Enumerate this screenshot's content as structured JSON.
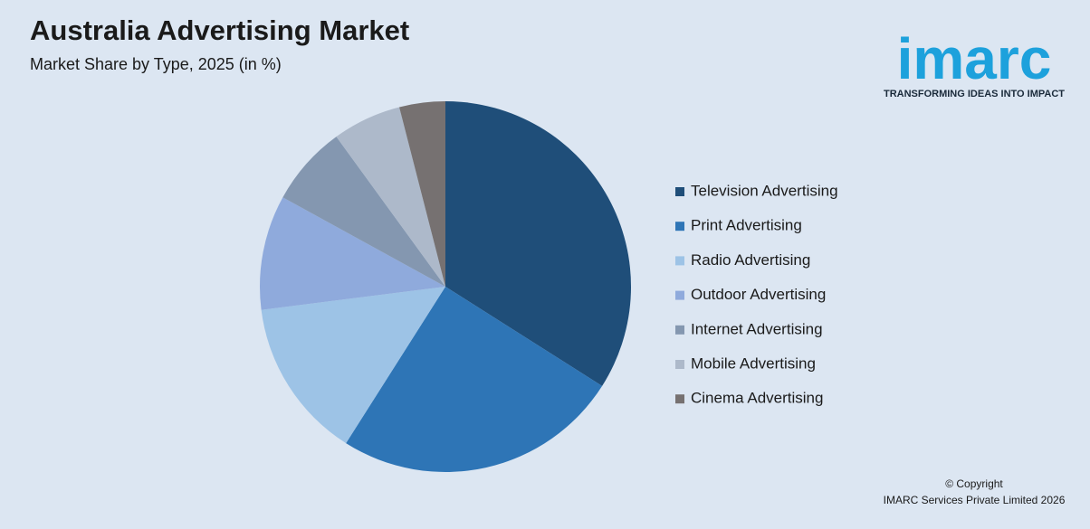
{
  "chart_data": {
    "type": "pie",
    "title": "Australia Advertising Market",
    "subtitle": "Market Share by Type, 2025 (in %)",
    "categories": [
      "Television Advertising",
      "Print Advertising",
      "Radio Advertising",
      "Outdoor Advertising",
      "Internet Advertising",
      "Mobile Advertising",
      "Cinema Advertising"
    ],
    "values": [
      34,
      25,
      14,
      10,
      7,
      6,
      4
    ],
    "colors": [
      "#1f4e79",
      "#2e75b6",
      "#9dc3e6",
      "#8faadc",
      "#8497b0",
      "#adb9ca",
      "#767171"
    ],
    "legend": "right",
    "brand": "imarc",
    "tagline": "TRANSFORMING IDEAS INTO IMPACT",
    "copyright": [
      "© Copyright",
      "IMARC Services Private Limited 2026"
    ]
  }
}
